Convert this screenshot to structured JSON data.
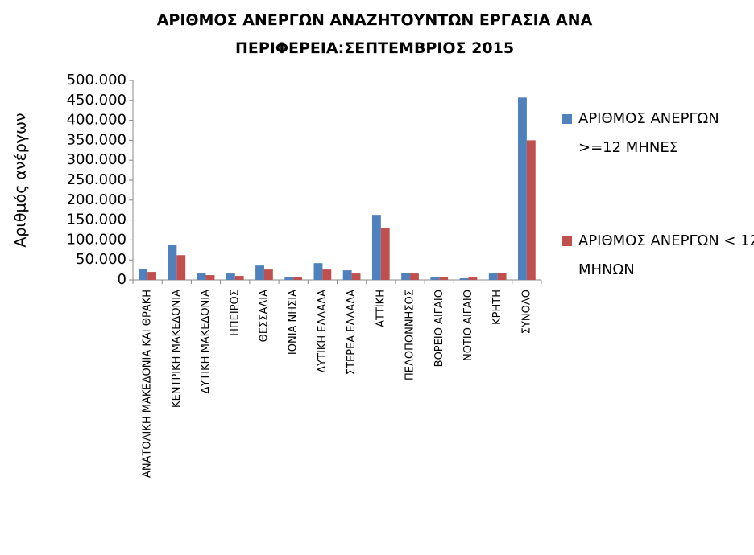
{
  "chart_data": {
    "type": "bar",
    "title": "ΑΡΙΘΜΟΣ ΑΝΕΡΓΩΝ ΑΝΑΖΗΤΟΥΝΤΩΝ ΕΡΓΑΣΙΑ ΑΝΑ ΠΕΡΙΦΕΡΕΙΑ:ΣΕΠΤΕΜΒΡΙΟΣ 2015",
    "y_label": "Αριθμός ανέργων",
    "categories": [
      "ΑΝΑΤΟΛΙΚΗ ΜΑΚΕΔΟΝΙΑ ΚΑΙ ΘΡΑΚΗ",
      "ΚΕΝΤΡΙΚΗ ΜΑΚΕΔΟΝΙΑ",
      "ΔΥΤΙΚΗ ΜΑΚΕΔΟΝΙΑ",
      "ΗΠΕΙΡΟΣ",
      "ΘΕΣΣΑΛΙΑ",
      "ΙΟΝΙΑ ΝΗΣΙΑ",
      "ΔΥΤΙΚΗ ΕΛΛΑΔΑ",
      "ΣΤΕΡΕΑ ΕΛΛΑΔΑ",
      "ΑΤΤΙΚΗ",
      "ΠΕΛΟΠΟΝΝΗΣΟΣ",
      "ΒΟΡΕΙΟ ΑΙΓΑΙΟ",
      "ΝΟΤΙΟ ΑΙΓΑΙΟ",
      "ΚΡΗΤΗ",
      "ΣΥΝΟΛΟ"
    ],
    "series": [
      {
        "name": "ΑΡΙΘΜΟΣ ΑΝΕΡΓΩΝ >=12 ΜΗΝΕΣ",
        "color": "#4f81bd",
        "values": [
          28000,
          88000,
          16000,
          16000,
          36000,
          6000,
          42000,
          24000,
          163000,
          18000,
          6000,
          4000,
          16000,
          457000
        ]
      },
      {
        "name": "ΑΡΙΘΜΟΣ ΑΝΕΡΓΩΝ < 12 ΜΗΝΩΝ",
        "color": "#c0504d",
        "values": [
          20000,
          62000,
          12000,
          10000,
          26000,
          6000,
          26000,
          16000,
          129000,
          16000,
          6000,
          6000,
          18000,
          350000
        ]
      }
    ],
    "ylim": [
      0,
      500000
    ],
    "yticks": [
      0,
      {
        "value": 50000,
        "label": "50.000"
      },
      {
        "value": 100000,
        "label": "100.000"
      },
      {
        "value": 150000,
        "label": "150.000"
      },
      {
        "value": 200000,
        "label": "200.000"
      },
      {
        "value": 250000,
        "label": "250.000"
      },
      {
        "value": 300000,
        "label": "300.000"
      },
      {
        "value": 350000,
        "label": "350.000"
      },
      {
        "value": 400000,
        "label": "400.000"
      },
      {
        "value": 450000,
        "label": "450.000"
      },
      {
        "value": 500000,
        "label": "500.000"
      }
    ],
    "grid": false,
    "legend": "right"
  }
}
